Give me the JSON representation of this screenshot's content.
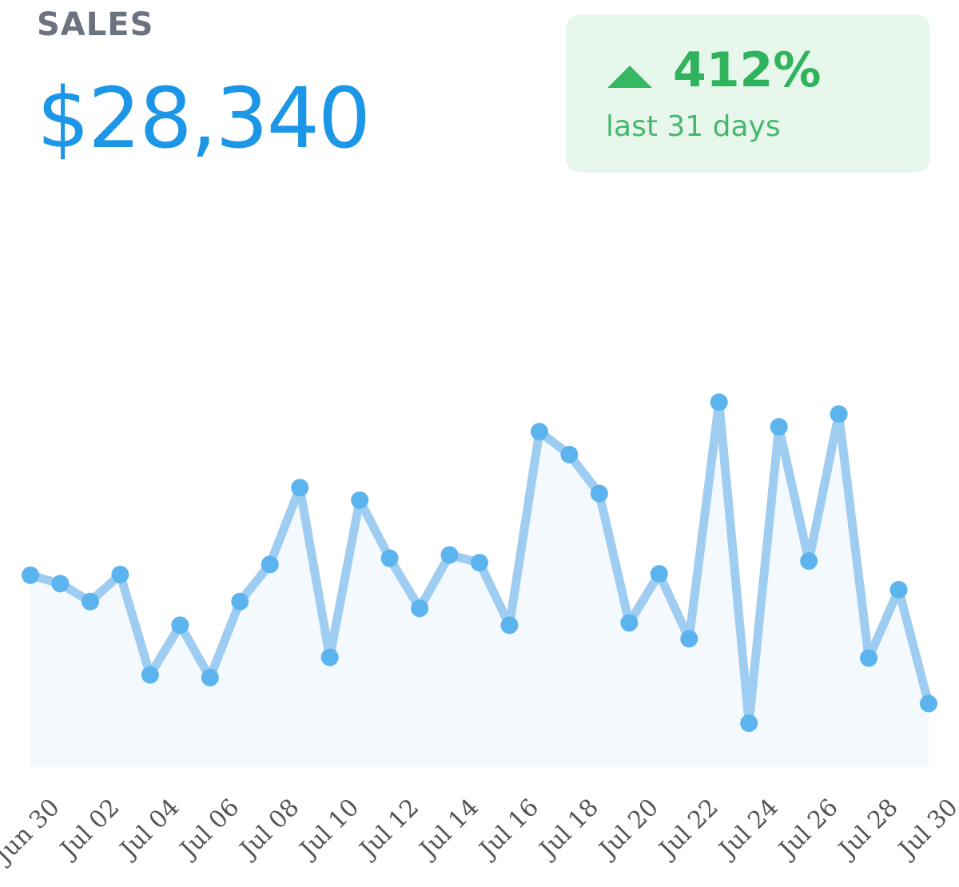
{
  "header": {
    "title": "SALES",
    "value": "$28,340"
  },
  "trend": {
    "direction_icon": "triangle-up-icon",
    "percent": "412%",
    "caption": "last 31 days",
    "color": "#2fb35c",
    "background": "#e7f7ec"
  },
  "chart_data": {
    "type": "line",
    "title": "",
    "xlabel": "",
    "ylabel": "",
    "line_color": "#9fcdf1",
    "point_color": "#5cb4ef",
    "area_fill": "#f4f9fe",
    "grid": false,
    "y_axis_visible": false,
    "ylim": [
      0,
      1400
    ],
    "x_tick_labels": [
      "Jun 30",
      "Jul 02",
      "Jul 04",
      "Jul 06",
      "Jul 08",
      "Jul 10",
      "Jul 12",
      "Jul 14",
      "Jul 16",
      "Jul 18",
      "Jul 20",
      "Jul 22",
      "Jul 24",
      "Jul 26",
      "Jul 28",
      "Jul 30"
    ],
    "series": [
      {
        "x": [
          "Jun 30",
          "Jul 01",
          "Jul 02",
          "Jul 03",
          "Jul 04",
          "Jul 05",
          "Jul 06",
          "Jul 07",
          "Jul 08",
          "Jul 09",
          "Jul 10",
          "Jul 11",
          "Jul 12",
          "Jul 13",
          "Jul 14",
          "Jul 15",
          "Jul 16",
          "Jul 17",
          "Jul 18",
          "Jul 19",
          "Jul 20",
          "Jul 21",
          "Jul 22",
          "Jul 23",
          "Jul 24",
          "Jul 25",
          "Jul 26",
          "Jul 27",
          "Jul 28",
          "Jul 29",
          "Jul 30"
        ],
        "values": [
          568,
          543,
          490,
          570,
          273,
          420,
          265,
          490,
          600,
          827,
          325,
          790,
          618,
          470,
          628,
          605,
          420,
          993,
          925,
          810,
          427,
          572,
          380,
          1080,
          130,
          1007,
          610,
          1045,
          323,
          525,
          188
        ]
      }
    ]
  }
}
